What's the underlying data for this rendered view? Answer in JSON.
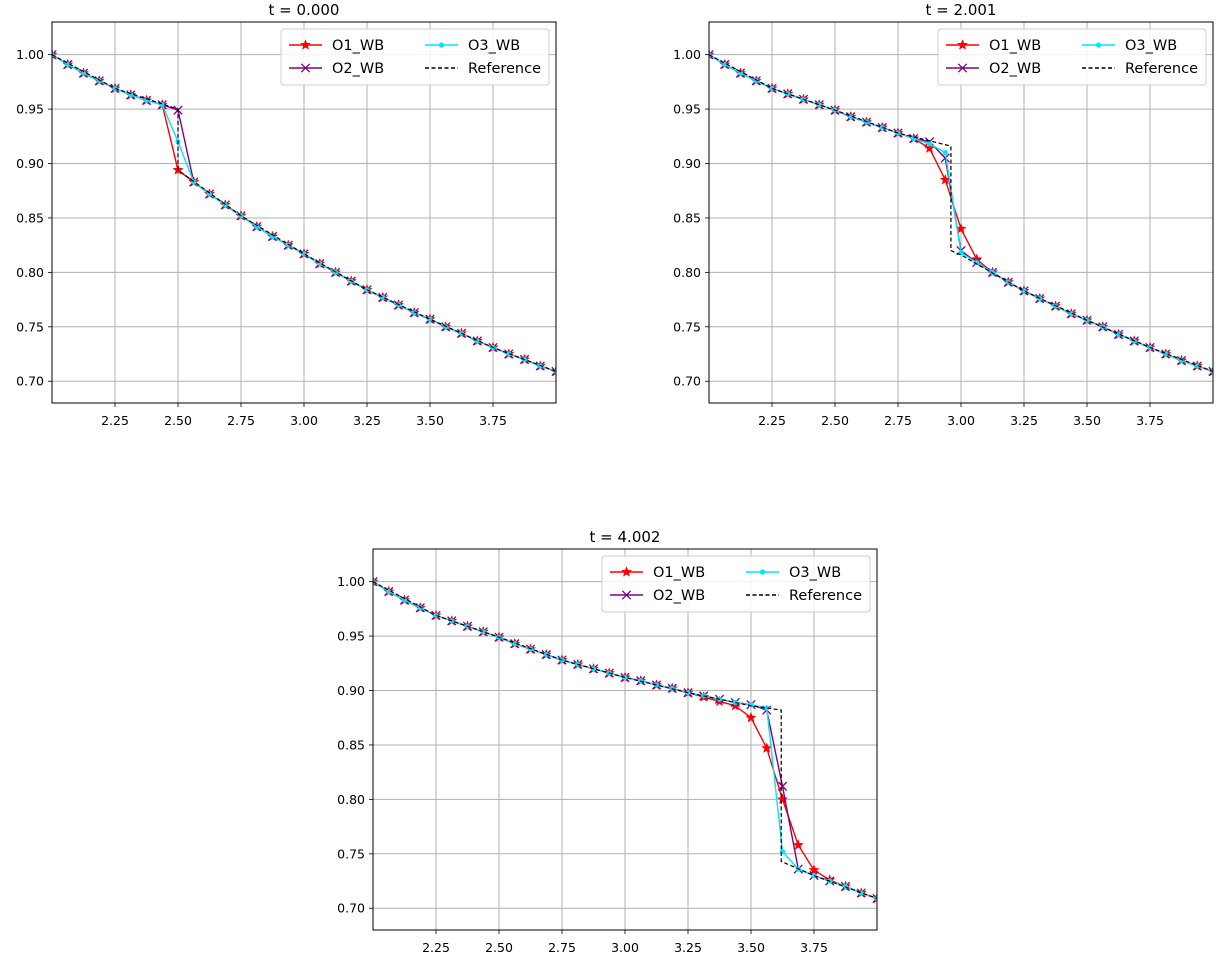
{
  "figure": {
    "legend_position": "upper right",
    "legend_columns": 2,
    "grid": true
  },
  "series_styles": {
    "O1_WB": {
      "color": "#ff0000",
      "marker": "star"
    },
    "O2_WB": {
      "color": "#800080",
      "marker": "x"
    },
    "O3_WB": {
      "color": "#00e5ff",
      "marker": "dot"
    },
    "Reference": {
      "color": "#000000",
      "marker": "none",
      "dash": "dashed"
    }
  },
  "chart_data": [
    {
      "type": "line",
      "title": "t = 0.000",
      "xlim": [
        2.0,
        4.0
      ],
      "ylim": [
        0.68,
        1.03
      ],
      "xticks": [
        "2.25",
        "2.50",
        "2.75",
        "3.00",
        "3.25",
        "3.50",
        "3.75"
      ],
      "yticks": [
        "0.70",
        "0.75",
        "0.80",
        "0.85",
        "0.90",
        "0.95",
        "1.00"
      ],
      "series": [
        {
          "name": "O1_WB",
          "x": [
            2.0,
            2.0625,
            2.125,
            2.1875,
            2.25,
            2.3125,
            2.375,
            2.4375,
            2.5,
            2.5625,
            2.625,
            2.6875,
            2.75,
            2.8125,
            2.875,
            2.9375,
            3.0,
            3.0625,
            3.125,
            3.1875,
            3.25,
            3.3125,
            3.375,
            3.4375,
            3.5,
            3.5625,
            3.625,
            3.6875,
            3.75,
            3.8125,
            3.875,
            3.9375,
            4.0
          ],
          "y": [
            1.0,
            0.991,
            0.983,
            0.976,
            0.969,
            0.963,
            0.958,
            0.954,
            0.894,
            0.883,
            0.872,
            0.862,
            0.852,
            0.842,
            0.833,
            0.825,
            0.817,
            0.808,
            0.8,
            0.792,
            0.784,
            0.777,
            0.77,
            0.763,
            0.757,
            0.75,
            0.744,
            0.737,
            0.731,
            0.725,
            0.72,
            0.714,
            0.709
          ]
        },
        {
          "name": "O2_WB",
          "x": [
            2.0,
            2.0625,
            2.125,
            2.1875,
            2.25,
            2.3125,
            2.375,
            2.4375,
            2.5,
            2.5625,
            2.625,
            2.6875,
            2.75,
            2.8125,
            2.875,
            2.9375,
            3.0,
            3.0625,
            3.125,
            3.1875,
            3.25,
            3.3125,
            3.375,
            3.4375,
            3.5,
            3.5625,
            3.625,
            3.6875,
            3.75,
            3.8125,
            3.875,
            3.9375,
            4.0
          ],
          "y": [
            1.0,
            0.991,
            0.983,
            0.976,
            0.969,
            0.963,
            0.958,
            0.954,
            0.949,
            0.883,
            0.872,
            0.862,
            0.852,
            0.842,
            0.833,
            0.825,
            0.817,
            0.808,
            0.8,
            0.792,
            0.784,
            0.777,
            0.77,
            0.763,
            0.757,
            0.75,
            0.744,
            0.737,
            0.731,
            0.725,
            0.72,
            0.714,
            0.709
          ]
        },
        {
          "name": "O3_WB",
          "x": [
            2.0,
            2.0625,
            2.125,
            2.1875,
            2.25,
            2.3125,
            2.375,
            2.4375,
            2.5,
            2.5625,
            2.625,
            2.6875,
            2.75,
            2.8125,
            2.875,
            2.9375,
            3.0,
            3.0625,
            3.125,
            3.1875,
            3.25,
            3.3125,
            3.375,
            3.4375,
            3.5,
            3.5625,
            3.625,
            3.6875,
            3.75,
            3.8125,
            3.875,
            3.9375,
            4.0
          ],
          "y": [
            1.0,
            0.991,
            0.983,
            0.976,
            0.969,
            0.963,
            0.958,
            0.954,
            0.92,
            0.883,
            0.872,
            0.862,
            0.852,
            0.842,
            0.833,
            0.825,
            0.817,
            0.808,
            0.8,
            0.792,
            0.784,
            0.777,
            0.77,
            0.763,
            0.757,
            0.75,
            0.744,
            0.737,
            0.731,
            0.725,
            0.72,
            0.714,
            0.709
          ]
        },
        {
          "name": "Reference",
          "x": [
            2.0,
            2.25,
            2.5,
            2.5,
            2.75,
            3.0,
            3.25,
            3.5,
            3.75,
            4.0
          ],
          "y": [
            1.0,
            0.969,
            0.95,
            0.894,
            0.852,
            0.817,
            0.784,
            0.757,
            0.731,
            0.709
          ]
        }
      ]
    },
    {
      "type": "line",
      "title": "t = 2.001",
      "xlim": [
        2.0,
        4.0
      ],
      "ylim": [
        0.68,
        1.03
      ],
      "xticks": [
        "2.25",
        "2.50",
        "2.75",
        "3.00",
        "3.25",
        "3.50",
        "3.75"
      ],
      "yticks": [
        "0.70",
        "0.75",
        "0.80",
        "0.85",
        "0.90",
        "0.95",
        "1.00"
      ],
      "series": [
        {
          "name": "O1_WB",
          "x": [
            2.0,
            2.0625,
            2.125,
            2.1875,
            2.25,
            2.3125,
            2.375,
            2.4375,
            2.5,
            2.5625,
            2.625,
            2.6875,
            2.75,
            2.8125,
            2.875,
            2.9375,
            3.0,
            3.0625,
            3.125,
            3.1875,
            3.25,
            3.3125,
            3.375,
            3.4375,
            3.5,
            3.5625,
            3.625,
            3.6875,
            3.75,
            3.8125,
            3.875,
            3.9375,
            4.0
          ],
          "y": [
            1.0,
            0.991,
            0.983,
            0.976,
            0.969,
            0.964,
            0.959,
            0.954,
            0.949,
            0.943,
            0.938,
            0.933,
            0.928,
            0.923,
            0.914,
            0.885,
            0.84,
            0.812,
            0.8,
            0.791,
            0.783,
            0.776,
            0.769,
            0.762,
            0.756,
            0.75,
            0.743,
            0.737,
            0.731,
            0.725,
            0.719,
            0.714,
            0.709
          ]
        },
        {
          "name": "O2_WB",
          "x": [
            2.0,
            2.0625,
            2.125,
            2.1875,
            2.25,
            2.3125,
            2.375,
            2.4375,
            2.5,
            2.5625,
            2.625,
            2.6875,
            2.75,
            2.8125,
            2.875,
            2.9375,
            3.0,
            3.0625,
            3.125,
            3.1875,
            3.25,
            3.3125,
            3.375,
            3.4375,
            3.5,
            3.5625,
            3.625,
            3.6875,
            3.75,
            3.8125,
            3.875,
            3.9375,
            4.0
          ],
          "y": [
            1.0,
            0.991,
            0.983,
            0.976,
            0.969,
            0.964,
            0.959,
            0.954,
            0.949,
            0.943,
            0.938,
            0.933,
            0.928,
            0.923,
            0.92,
            0.905,
            0.82,
            0.809,
            0.8,
            0.791,
            0.783,
            0.776,
            0.769,
            0.762,
            0.756,
            0.75,
            0.743,
            0.737,
            0.731,
            0.725,
            0.719,
            0.714,
            0.709
          ]
        },
        {
          "name": "O3_WB",
          "x": [
            2.0,
            2.0625,
            2.125,
            2.1875,
            2.25,
            2.3125,
            2.375,
            2.4375,
            2.5,
            2.5625,
            2.625,
            2.6875,
            2.75,
            2.8125,
            2.875,
            2.9375,
            3.0,
            3.0625,
            3.125,
            3.1875,
            3.25,
            3.3125,
            3.375,
            3.4375,
            3.5,
            3.5625,
            3.625,
            3.6875,
            3.75,
            3.8125,
            3.875,
            3.9375,
            4.0
          ],
          "y": [
            1.0,
            0.991,
            0.983,
            0.976,
            0.969,
            0.964,
            0.959,
            0.954,
            0.949,
            0.943,
            0.938,
            0.933,
            0.928,
            0.923,
            0.918,
            0.91,
            0.818,
            0.809,
            0.8,
            0.791,
            0.783,
            0.776,
            0.769,
            0.762,
            0.756,
            0.75,
            0.743,
            0.737,
            0.731,
            0.725,
            0.719,
            0.714,
            0.709
          ]
        },
        {
          "name": "Reference",
          "x": [
            2.0,
            2.25,
            2.5,
            2.75,
            2.96,
            2.96,
            3.0,
            3.25,
            3.5,
            3.75,
            4.0
          ],
          "y": [
            1.0,
            0.969,
            0.949,
            0.928,
            0.916,
            0.82,
            0.816,
            0.783,
            0.756,
            0.731,
            0.709
          ]
        }
      ]
    },
    {
      "type": "line",
      "title": "t = 4.002",
      "xlim": [
        2.0,
        4.0
      ],
      "ylim": [
        0.68,
        1.03
      ],
      "xticks": [
        "2.25",
        "2.50",
        "2.75",
        "3.00",
        "3.25",
        "3.50",
        "3.75"
      ],
      "yticks": [
        "0.70",
        "0.75",
        "0.80",
        "0.85",
        "0.90",
        "0.95",
        "1.00"
      ],
      "series": [
        {
          "name": "O1_WB",
          "x": [
            2.0,
            2.0625,
            2.125,
            2.1875,
            2.25,
            2.3125,
            2.375,
            2.4375,
            2.5,
            2.5625,
            2.625,
            2.6875,
            2.75,
            2.8125,
            2.875,
            2.9375,
            3.0,
            3.0625,
            3.125,
            3.1875,
            3.25,
            3.3125,
            3.375,
            3.4375,
            3.5,
            3.5625,
            3.625,
            3.6875,
            3.75,
            3.8125,
            3.875,
            3.9375,
            4.0
          ],
          "y": [
            1.0,
            0.991,
            0.983,
            0.976,
            0.969,
            0.964,
            0.959,
            0.954,
            0.949,
            0.943,
            0.938,
            0.933,
            0.928,
            0.924,
            0.92,
            0.916,
            0.912,
            0.909,
            0.905,
            0.902,
            0.898,
            0.894,
            0.89,
            0.886,
            0.875,
            0.847,
            0.8,
            0.758,
            0.735,
            0.726,
            0.72,
            0.714,
            0.709
          ]
        },
        {
          "name": "O2_WB",
          "x": [
            2.0,
            2.0625,
            2.125,
            2.1875,
            2.25,
            2.3125,
            2.375,
            2.4375,
            2.5,
            2.5625,
            2.625,
            2.6875,
            2.75,
            2.8125,
            2.875,
            2.9375,
            3.0,
            3.0625,
            3.125,
            3.1875,
            3.25,
            3.3125,
            3.375,
            3.4375,
            3.5,
            3.5625,
            3.625,
            3.6875,
            3.75,
            3.8125,
            3.875,
            3.9375,
            4.0
          ],
          "y": [
            1.0,
            0.991,
            0.983,
            0.976,
            0.969,
            0.964,
            0.959,
            0.954,
            0.949,
            0.943,
            0.938,
            0.933,
            0.928,
            0.924,
            0.92,
            0.916,
            0.912,
            0.909,
            0.905,
            0.902,
            0.898,
            0.895,
            0.892,
            0.889,
            0.887,
            0.882,
            0.812,
            0.736,
            0.73,
            0.725,
            0.72,
            0.714,
            0.709
          ]
        },
        {
          "name": "O3_WB",
          "x": [
            2.0,
            2.0625,
            2.125,
            2.1875,
            2.25,
            2.3125,
            2.375,
            2.4375,
            2.5,
            2.5625,
            2.625,
            2.6875,
            2.75,
            2.8125,
            2.875,
            2.9375,
            3.0,
            3.0625,
            3.125,
            3.1875,
            3.25,
            3.3125,
            3.375,
            3.4375,
            3.5,
            3.5625,
            3.625,
            3.6875,
            3.75,
            3.8125,
            3.875,
            3.9375,
            4.0
          ],
          "y": [
            1.0,
            0.991,
            0.983,
            0.976,
            0.969,
            0.964,
            0.959,
            0.954,
            0.949,
            0.943,
            0.938,
            0.933,
            0.928,
            0.924,
            0.92,
            0.916,
            0.912,
            0.909,
            0.905,
            0.902,
            0.898,
            0.895,
            0.892,
            0.889,
            0.887,
            0.884,
            0.752,
            0.736,
            0.73,
            0.725,
            0.72,
            0.714,
            0.709
          ]
        },
        {
          "name": "Reference",
          "x": [
            2.0,
            2.25,
            2.5,
            2.75,
            3.0,
            3.25,
            3.5,
            3.62,
            3.62,
            3.75,
            4.0
          ],
          "y": [
            1.0,
            0.969,
            0.949,
            0.928,
            0.912,
            0.898,
            0.886,
            0.882,
            0.743,
            0.73,
            0.709
          ]
        }
      ]
    }
  ]
}
